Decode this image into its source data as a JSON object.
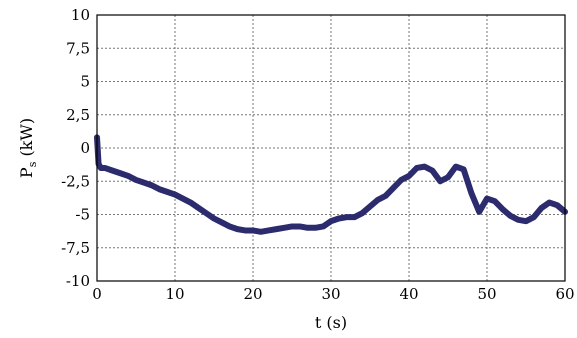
{
  "chart_data": {
    "type": "line",
    "xlabel": "t (s)",
    "ylabel_main": "P",
    "ylabel_sub": "s",
    "ylabel_unit": " (kW)",
    "xlim": [
      0,
      60
    ],
    "ylim": [
      -10,
      10
    ],
    "grid": true,
    "x_ticks": [
      0,
      10,
      20,
      30,
      40,
      50,
      60
    ],
    "x_tick_labels": [
      "0",
      "10",
      "20",
      "30",
      "40",
      "50",
      "60"
    ],
    "y_ticks": [
      10,
      7.5,
      5,
      2.5,
      0,
      -2.5,
      -5,
      -7.5,
      -10
    ],
    "y_tick_labels": [
      "10",
      "7,5",
      "5",
      "2,5",
      "0",
      "-2,5",
      "-5",
      "-7,5",
      "-10"
    ],
    "line_color": "#2b2b6e",
    "series": [
      {
        "x": [
          0,
          0.2,
          0.5,
          1,
          2,
          3,
          4,
          5,
          6,
          7,
          8,
          9,
          10,
          11,
          12,
          13,
          14,
          15,
          16,
          17,
          18,
          19,
          20,
          21,
          22,
          23,
          24,
          25,
          26,
          27,
          28,
          29,
          30,
          31,
          32,
          33,
          34,
          35,
          36,
          37,
          38,
          39,
          40,
          41,
          42,
          43,
          44,
          45,
          46,
          47,
          48,
          49,
          50,
          51,
          52,
          53,
          54,
          55,
          56,
          57,
          58,
          59,
          60
        ],
        "y": [
          0.8,
          -1.2,
          -1.5,
          -1.5,
          -1.7,
          -1.9,
          -2.1,
          -2.4,
          -2.6,
          -2.8,
          -3.1,
          -3.3,
          -3.5,
          -3.8,
          -4.1,
          -4.5,
          -4.9,
          -5.3,
          -5.6,
          -5.9,
          -6.1,
          -6.2,
          -6.2,
          -6.3,
          -6.2,
          -6.1,
          -6.0,
          -5.9,
          -5.9,
          -6.0,
          -6.0,
          -5.9,
          -5.5,
          -5.3,
          -5.2,
          -5.2,
          -4.9,
          -4.4,
          -3.9,
          -3.6,
          -3.0,
          -2.4,
          -2.1,
          -1.5,
          -1.4,
          -1.7,
          -2.5,
          -2.2,
          -1.4,
          -1.6,
          -3.4,
          -4.8,
          -3.8,
          -4.0,
          -4.6,
          -5.1,
          -5.4,
          -5.5,
          -5.2,
          -4.5,
          -4.1,
          -4.3,
          -4.8
        ]
      }
    ]
  }
}
